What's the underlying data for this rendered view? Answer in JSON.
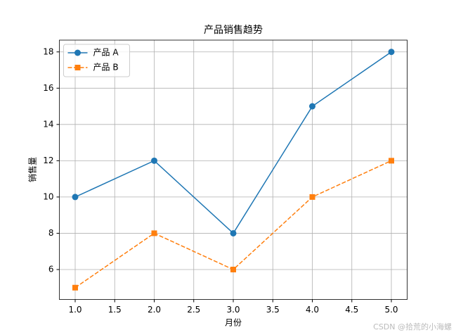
{
  "chart_data": {
    "type": "line",
    "title": "产品销售趋势",
    "x_label": "月份",
    "y_label": "销售量",
    "x": [
      1,
      2,
      3,
      4,
      5
    ],
    "series": [
      {
        "name": "产品 A",
        "color": "#1f77b4",
        "marker": "circle",
        "linestyle": "solid",
        "values": [
          10,
          12,
          8,
          15,
          18
        ]
      },
      {
        "name": "产品 B",
        "color": "#ff7f0e",
        "marker": "square",
        "linestyle": "dashed",
        "values": [
          5,
          8,
          6,
          10,
          12
        ]
      }
    ],
    "xlim": [
      0.8,
      5.2
    ],
    "xticks": [
      {
        "value": 1,
        "label": "1.0"
      },
      {
        "value": 1.5,
        "label": "1.5"
      },
      {
        "value": 2,
        "label": "2.0"
      },
      {
        "value": 2.5,
        "label": "2.5"
      },
      {
        "value": 3,
        "label": "3.0"
      },
      {
        "value": 3.5,
        "label": "3.5"
      },
      {
        "value": 4,
        "label": "4.0"
      },
      {
        "value": 4.5,
        "label": "4.5"
      },
      {
        "value": 5,
        "label": "5.0"
      }
    ],
    "ylim": [
      4.35,
      18.65
    ],
    "yticks": [
      6,
      8,
      10,
      12,
      14,
      16,
      18
    ],
    "grid": true,
    "legend": "upper left",
    "watermark": "CSDN @拾荒的小海螺"
  }
}
